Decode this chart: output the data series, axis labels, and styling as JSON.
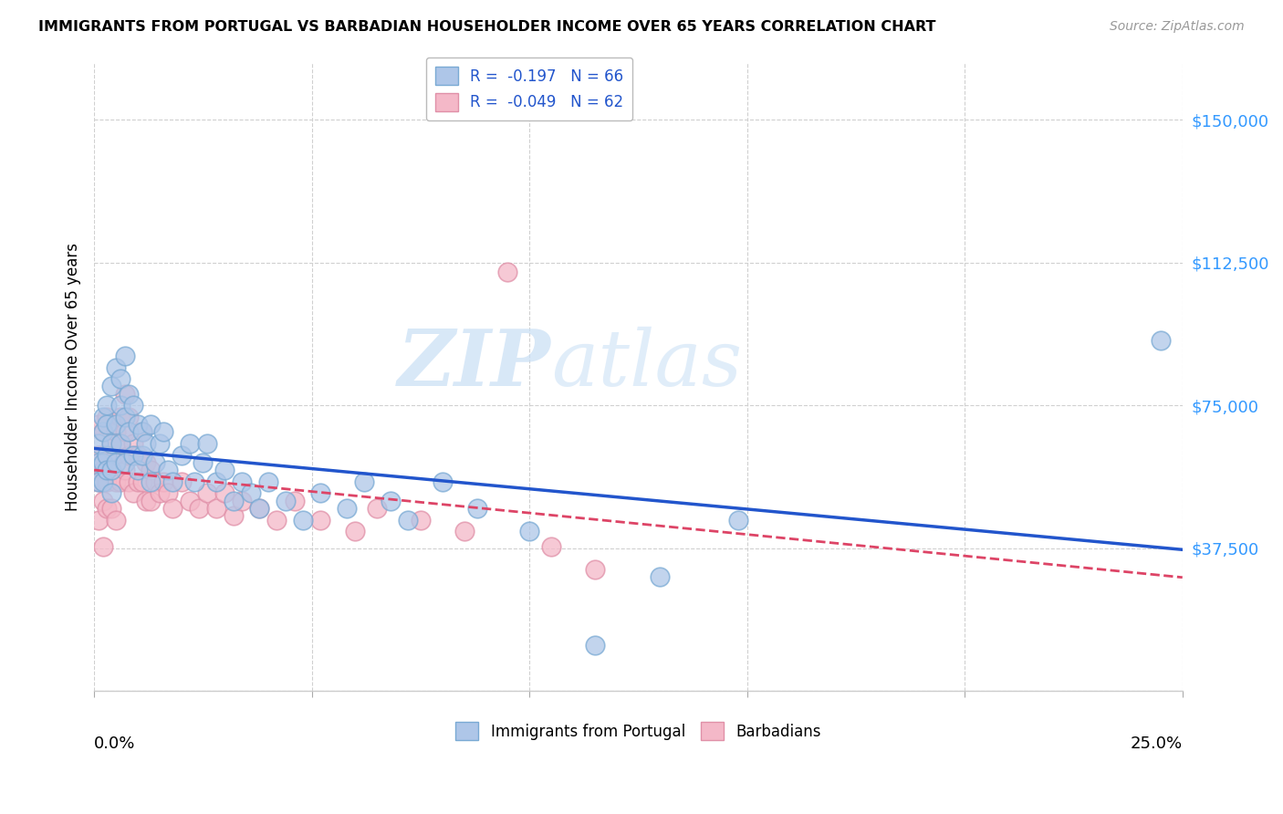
{
  "title": "IMMIGRANTS FROM PORTUGAL VS BARBADIAN HOUSEHOLDER INCOME OVER 65 YEARS CORRELATION CHART",
  "source": "Source: ZipAtlas.com",
  "ylabel": "Householder Income Over 65 years",
  "xlim": [
    0.0,
    0.25
  ],
  "ylim": [
    0,
    165000
  ],
  "yticks": [
    0,
    37500,
    75000,
    112500,
    150000
  ],
  "ytick_labels": [
    "",
    "$37,500",
    "$75,000",
    "$112,500",
    "$150,000"
  ],
  "watermark_zip": "ZIP",
  "watermark_atlas": "atlas",
  "portugal_color": "#aec6e8",
  "portugal_edge": "#7aaad4",
  "barbadian_color": "#f4b8c8",
  "barbadian_edge": "#e090a8",
  "portugal_trend_color": "#2255cc",
  "barbadian_trend_color": "#dd4466",
  "portugal_x": [
    0.001,
    0.001,
    0.001,
    0.002,
    0.002,
    0.002,
    0.002,
    0.003,
    0.003,
    0.003,
    0.003,
    0.004,
    0.004,
    0.004,
    0.004,
    0.005,
    0.005,
    0.005,
    0.006,
    0.006,
    0.006,
    0.007,
    0.007,
    0.007,
    0.008,
    0.008,
    0.009,
    0.009,
    0.01,
    0.01,
    0.011,
    0.011,
    0.012,
    0.013,
    0.013,
    0.014,
    0.015,
    0.016,
    0.017,
    0.018,
    0.02,
    0.022,
    0.023,
    0.025,
    0.026,
    0.028,
    0.03,
    0.032,
    0.034,
    0.036,
    0.038,
    0.04,
    0.044,
    0.048,
    0.052,
    0.058,
    0.062,
    0.068,
    0.072,
    0.08,
    0.088,
    0.1,
    0.115,
    0.13,
    0.148,
    0.245
  ],
  "portugal_y": [
    60000,
    65000,
    55000,
    68000,
    60000,
    72000,
    55000,
    62000,
    70000,
    58000,
    75000,
    80000,
    65000,
    58000,
    52000,
    85000,
    70000,
    60000,
    82000,
    75000,
    65000,
    88000,
    72000,
    60000,
    78000,
    68000,
    75000,
    62000,
    70000,
    58000,
    68000,
    62000,
    65000,
    70000,
    55000,
    60000,
    65000,
    68000,
    58000,
    55000,
    62000,
    65000,
    55000,
    60000,
    65000,
    55000,
    58000,
    50000,
    55000,
    52000,
    48000,
    55000,
    50000,
    45000,
    52000,
    48000,
    55000,
    50000,
    45000,
    55000,
    48000,
    42000,
    12000,
    30000,
    45000,
    92000
  ],
  "barbadian_x": [
    0.001,
    0.001,
    0.001,
    0.001,
    0.002,
    0.002,
    0.002,
    0.002,
    0.003,
    0.003,
    0.003,
    0.003,
    0.004,
    0.004,
    0.004,
    0.005,
    0.005,
    0.005,
    0.005,
    0.006,
    0.006,
    0.006,
    0.007,
    0.007,
    0.007,
    0.008,
    0.008,
    0.008,
    0.009,
    0.009,
    0.01,
    0.01,
    0.011,
    0.011,
    0.012,
    0.012,
    0.013,
    0.013,
    0.014,
    0.015,
    0.016,
    0.017,
    0.018,
    0.02,
    0.022,
    0.024,
    0.026,
    0.028,
    0.03,
    0.032,
    0.034,
    0.038,
    0.042,
    0.046,
    0.052,
    0.06,
    0.065,
    0.075,
    0.085,
    0.095,
    0.105,
    0.115
  ],
  "barbadian_y": [
    55000,
    62000,
    70000,
    45000,
    68000,
    58000,
    50000,
    38000,
    72000,
    62000,
    55000,
    48000,
    65000,
    58000,
    48000,
    68000,
    62000,
    55000,
    45000,
    72000,
    65000,
    55000,
    78000,
    68000,
    58000,
    72000,
    62000,
    55000,
    65000,
    52000,
    62000,
    55000,
    68000,
    55000,
    60000,
    50000,
    58000,
    50000,
    55000,
    52000,
    55000,
    52000,
    48000,
    55000,
    50000,
    48000,
    52000,
    48000,
    52000,
    46000,
    50000,
    48000,
    45000,
    50000,
    45000,
    42000,
    48000,
    45000,
    42000,
    110000,
    38000,
    32000
  ]
}
